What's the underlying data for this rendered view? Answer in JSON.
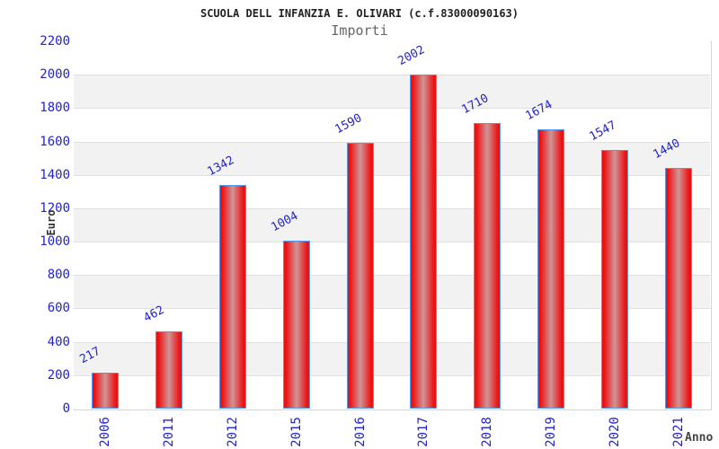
{
  "chart_data": {
    "type": "bar",
    "title": "SCUOLA DELL INFANZIA E. OLIVARI (c.f.83000090163)",
    "subtitle": "Importi",
    "xlabel": "Anno",
    "ylabel": "Euro",
    "categories": [
      "2006",
      "2011",
      "2012",
      "2015",
      "2016",
      "2017",
      "2018",
      "2019",
      "2020",
      "2021"
    ],
    "values": [
      217,
      462,
      1342,
      1004,
      1590,
      2002,
      1710,
      1674,
      1547,
      1440
    ],
    "ylim": [
      0,
      2200
    ],
    "ytick_step": 200,
    "yticks": [
      0,
      200,
      400,
      600,
      800,
      1000,
      1200,
      1400,
      1600,
      1800,
      2000,
      2200
    ],
    "legend": "none",
    "grid": "horizontal-bands-alternating",
    "colors": {
      "tick_label_blue": "#2222cc",
      "value_label_blue": "#2222cc",
      "bar_red": "#ed1212",
      "bar_center_highlight": "#cf9598",
      "bar_border_blue": "#5599ee",
      "band_gray": "#f2f2f2",
      "gridline_gray": "#e0e0e0",
      "plot_border_gray": "#d6d6d6",
      "title_color": "#222222",
      "subtitle_color": "#666666"
    }
  }
}
